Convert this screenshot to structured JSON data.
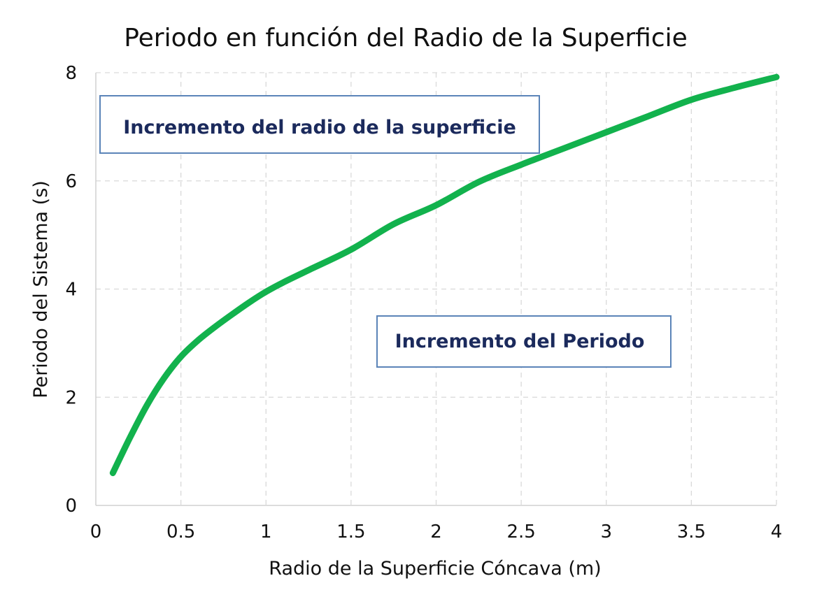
{
  "chart_data": {
    "type": "line",
    "title": "Periodo en función del Radio de la Superficie",
    "xlabel": "Radio de la Superficie Cóncava (m)",
    "ylabel": "Periodo del Sistema (s)",
    "xlim": [
      0,
      4
    ],
    "ylim": [
      0,
      8
    ],
    "xticks": [
      "0",
      "0.5",
      "1",
      "1.5",
      "2",
      "2.5",
      "3",
      "3.5",
      "4"
    ],
    "yticks": [
      "0",
      "2",
      "4",
      "6",
      "8"
    ],
    "grid": true,
    "legend": "none",
    "series": [
      {
        "color": "#12b24d",
        "x": [
          0.1,
          0.2,
          0.3,
          0.4,
          0.5,
          0.6,
          0.7,
          0.8,
          0.9,
          1.0,
          1.1,
          1.25,
          1.5,
          1.75,
          2.0,
          2.25,
          2.5,
          2.75,
          3.0,
          3.25,
          3.5,
          3.75,
          4.0
        ],
        "values": [
          0.6,
          1.25,
          1.85,
          2.35,
          2.75,
          3.05,
          3.3,
          3.53,
          3.75,
          3.95,
          4.12,
          4.35,
          4.73,
          5.2,
          5.55,
          5.98,
          6.3,
          6.6,
          6.9,
          7.2,
          7.5,
          7.72,
          7.92
        ]
      }
    ],
    "annotations": [
      {
        "text": "Incremento del radio de la superficie"
      },
      {
        "text": "Incremento del Periodo"
      }
    ]
  }
}
